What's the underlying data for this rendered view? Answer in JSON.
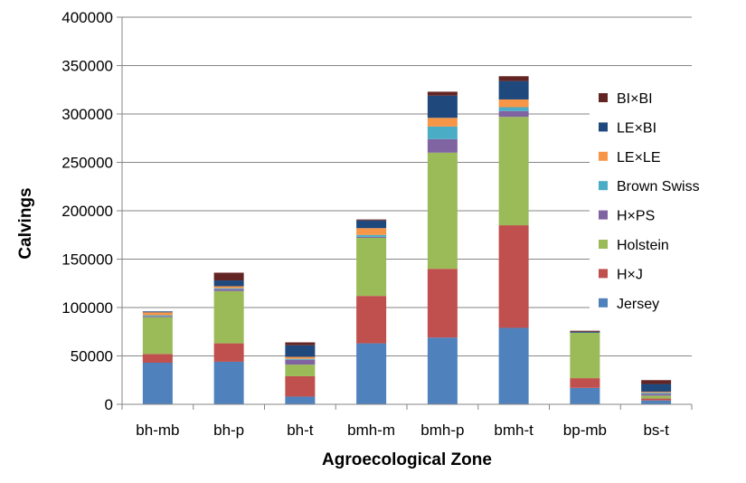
{
  "chart_data": {
    "type": "bar",
    "stacked": true,
    "title": "",
    "xlabel": "Agroecological Zone",
    "ylabel": "Calvings",
    "ylim": [
      0,
      400000
    ],
    "yticks": [
      0,
      50000,
      100000,
      150000,
      200000,
      250000,
      300000,
      350000,
      400000
    ],
    "grid": true,
    "legend_position": "right",
    "categories": [
      "bh-mb",
      "bh-p",
      "bh-t",
      "bmh-m",
      "bmh-p",
      "bmh-t",
      "bp-mb",
      "bs-t"
    ],
    "series": [
      {
        "name": "Jersey",
        "color": "#4f81bd",
        "values": [
          43000,
          44000,
          8000,
          63000,
          69000,
          79000,
          17000,
          4000
        ]
      },
      {
        "name": "H×J",
        "color": "#c0504d",
        "values": [
          9000,
          19000,
          21000,
          49000,
          71000,
          106000,
          10000,
          2000
        ]
      },
      {
        "name": "Holstein",
        "color": "#9bbb59",
        "values": [
          38000,
          54000,
          12000,
          60000,
          120000,
          112000,
          47000,
          3000
        ]
      },
      {
        "name": "H×PS",
        "color": "#8064a2",
        "values": [
          1000,
          2000,
          5000,
          1000,
          14000,
          6000,
          0,
          2000
        ]
      },
      {
        "name": "Brown Swiss",
        "color": "#4bacc6",
        "values": [
          1000,
          1000,
          1000,
          2000,
          13000,
          4000,
          0,
          1000
        ]
      },
      {
        "name": "LE×LE",
        "color": "#f79646",
        "values": [
          3000,
          2000,
          2000,
          7000,
          9000,
          8000,
          0,
          1000
        ]
      },
      {
        "name": "LE×BI",
        "color": "#1f497d",
        "values": [
          1000,
          6000,
          12000,
          8000,
          23000,
          19000,
          1000,
          8000
        ]
      },
      {
        "name": "BI×BI",
        "color": "#632523",
        "values": [
          0,
          8000,
          3000,
          1000,
          4000,
          5000,
          1000,
          4000
        ]
      }
    ]
  }
}
